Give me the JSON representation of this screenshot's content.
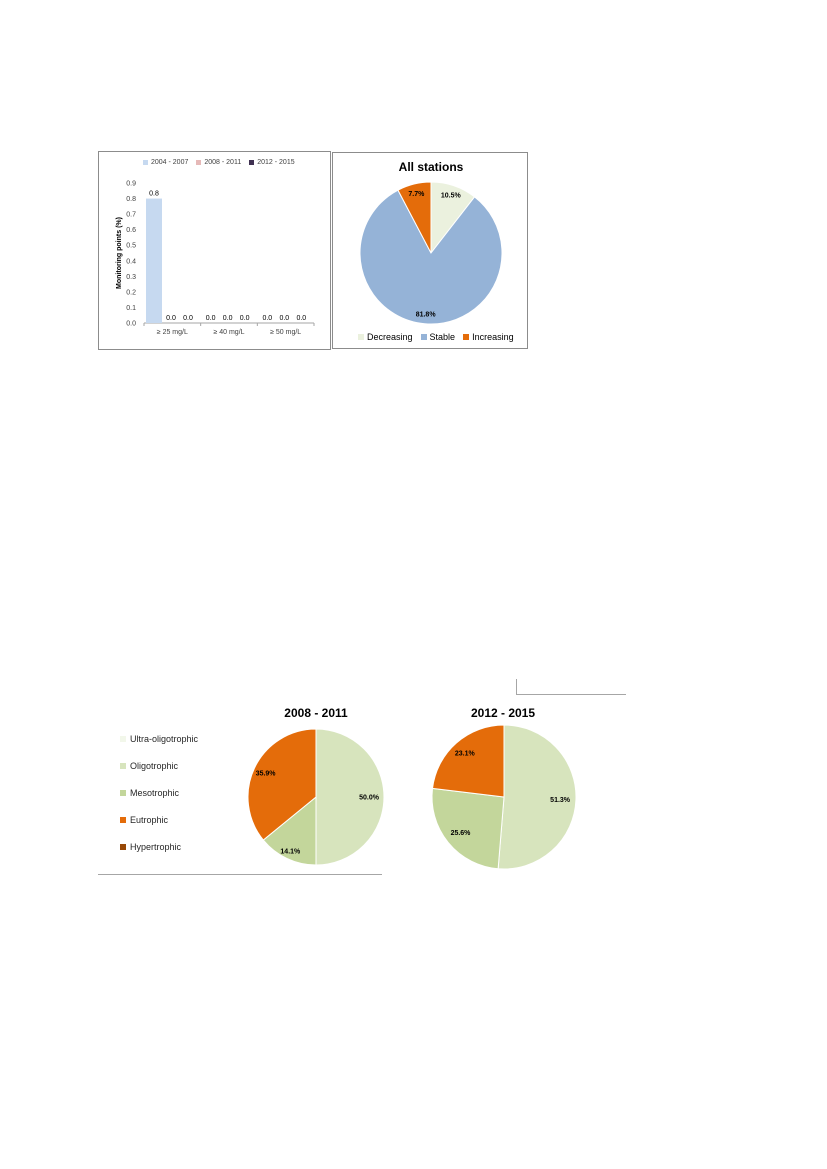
{
  "colors": {
    "s2004": "#c6d9f0",
    "s2008": "#e6b9b8",
    "s2012": "#403152",
    "decreasing": "#ebf1de",
    "stable": "#95b3d7",
    "increasing": "#e46c0a",
    "ultra": "#f2f7ea",
    "oligo": "#d7e4bd",
    "meso": "#c3d69b",
    "eutro": "#e46c0a",
    "hyper": "#984807"
  },
  "chart_data": [
    {
      "type": "bar",
      "ylabel": "Monitoring points (%)",
      "categories": [
        "≥ 25 mg/L",
        "≥ 40 mg/L",
        "≥ 50 mg/L"
      ],
      "ylim": [
        0,
        0.9
      ],
      "yticks": [
        "0.0",
        "0.1",
        "0.2",
        "0.3",
        "0.4",
        "0.5",
        "0.6",
        "0.7",
        "0.8",
        "0.9"
      ],
      "legend_position": "top",
      "series": [
        {
          "name": "2004 - 2007",
          "values": [
            0.8,
            0.0,
            0.0
          ],
          "labels": [
            "0.8",
            "0.0",
            "0.0"
          ]
        },
        {
          "name": "2008 - 2011",
          "values": [
            0.0,
            0.0,
            0.0
          ],
          "labels": [
            "0.0",
            "0.0",
            "0.0"
          ]
        },
        {
          "name": "2012 - 2015",
          "values": [
            0.0,
            0.0,
            0.0
          ],
          "labels": [
            "0.0",
            "0.0",
            "0.0"
          ]
        }
      ]
    },
    {
      "type": "pie",
      "title": "All stations",
      "legend_position": "bottom",
      "slices": [
        {
          "name": "Decreasing",
          "value": 10.5,
          "label": "10.5%"
        },
        {
          "name": "Stable",
          "value": 81.8,
          "label": "81.8%"
        },
        {
          "name": "Increasing",
          "value": 7.7,
          "label": "7.7%"
        }
      ]
    },
    {
      "type": "pie",
      "title": "2008 - 2011",
      "legend": [
        "Ultra-oligotrophic",
        "Oligotrophic",
        "Mesotrophic",
        "Eutrophic",
        "Hypertrophic"
      ],
      "legend_position": "left",
      "slices": [
        {
          "name": "Oligotrophic",
          "value": 50.0,
          "label": "50.0%"
        },
        {
          "name": "Mesotrophic",
          "value": 14.1,
          "label": "14.1%"
        },
        {
          "name": "Eutrophic",
          "value": 35.9,
          "label": "35.9%"
        }
      ]
    },
    {
      "type": "pie",
      "title": "2012 - 2015",
      "slices": [
        {
          "name": "Oligotrophic",
          "value": 51.3,
          "label": "51.3%"
        },
        {
          "name": "Mesotrophic",
          "value": 25.6,
          "label": "25.6%"
        },
        {
          "name": "Eutrophic",
          "value": 23.1,
          "label": "23.1%"
        }
      ]
    }
  ]
}
